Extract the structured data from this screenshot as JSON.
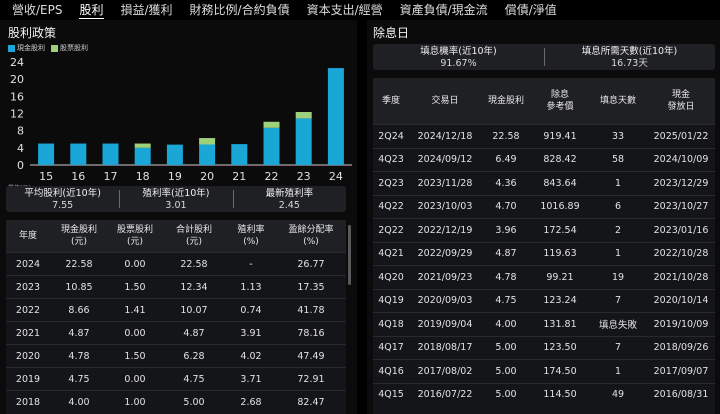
{
  "nav": {
    "tabs": [
      {
        "label": "營收/EPS",
        "active": false
      },
      {
        "label": "股利",
        "active": true
      },
      {
        "label": "損益/獲利",
        "active": false
      },
      {
        "label": "財務比例/合約負債",
        "active": false
      },
      {
        "label": "資本支出/經營",
        "active": false
      },
      {
        "label": "資產負債/現金流",
        "active": false
      },
      {
        "label": "償債/淨值",
        "active": false
      }
    ]
  },
  "left": {
    "title": "股利政策",
    "legend": {
      "cash": "現金股利",
      "stock": "股票股利"
    },
    "stats": [
      {
        "label": "平均股利(近10年)",
        "value": "7.55"
      },
      {
        "label": "殖利率(近10年)",
        "value": "3.01"
      },
      {
        "label": "最新殖利率",
        "value": "2.45"
      }
    ],
    "table": {
      "headers": [
        "年度",
        "現金股利\n(元)",
        "股票股利\n(元)",
        "合計股利\n(元)",
        "殖利率\n(%)",
        "盈餘分配率\n(%)"
      ],
      "rows": [
        [
          "2024",
          "22.58",
          "0.00",
          "22.58",
          "-",
          "26.77"
        ],
        [
          "2023",
          "10.85",
          "1.50",
          "12.34",
          "1.13",
          "17.35"
        ],
        [
          "2022",
          "8.66",
          "1.41",
          "10.07",
          "0.74",
          "41.78"
        ],
        [
          "2021",
          "4.87",
          "0.00",
          "4.87",
          "3.91",
          "78.16"
        ],
        [
          "2020",
          "4.78",
          "1.50",
          "6.28",
          "4.02",
          "47.49"
        ],
        [
          "2019",
          "4.75",
          "0.00",
          "4.75",
          "3.71",
          "72.91"
        ],
        [
          "2018",
          "4.00",
          "1.00",
          "5.00",
          "2.68",
          "82.47"
        ]
      ]
    }
  },
  "right": {
    "title": "除息日",
    "stats": [
      {
        "label": "填息機率(近10年)",
        "value": "91.67%"
      },
      {
        "label": "填息所需天數(近10年)",
        "value": "16.73天"
      }
    ],
    "table": {
      "headers": [
        "季度",
        "交易日",
        "現金股利",
        "除息\n參考價",
        "填息天數",
        "現金\n發放日"
      ],
      "rows": [
        [
          "2Q24",
          "2024/12/18",
          "22.58",
          "919.41",
          "33",
          "2025/01/22"
        ],
        [
          "4Q23",
          "2024/09/12",
          "6.49",
          "828.42",
          "58",
          "2024/10/09"
        ],
        [
          "2Q23",
          "2023/11/28",
          "4.36",
          "843.64",
          "1",
          "2023/12/29"
        ],
        [
          "4Q22",
          "2023/10/03",
          "4.70",
          "1016.89",
          "6",
          "2023/10/27"
        ],
        [
          "2Q22",
          "2022/12/19",
          "3.96",
          "172.54",
          "2",
          "2023/01/16"
        ],
        [
          "4Q21",
          "2022/09/29",
          "4.87",
          "119.63",
          "1",
          "2022/10/28"
        ],
        [
          "4Q20",
          "2021/09/23",
          "4.78",
          "99.21",
          "19",
          "2021/10/28"
        ],
        [
          "4Q19",
          "2020/09/03",
          "4.75",
          "123.24",
          "7",
          "2020/10/14"
        ],
        [
          "4Q18",
          "2019/09/04",
          "4.00",
          "131.81",
          "填息失敗",
          "2019/10/09"
        ],
        [
          "4Q17",
          "2018/08/17",
          "5.00",
          "123.50",
          "7",
          "2018/09/26"
        ],
        [
          "4Q16",
          "2017/08/02",
          "5.00",
          "174.50",
          "1",
          "2017/09/07"
        ],
        [
          "4Q15",
          "2016/07/22",
          "5.00",
          "114.50",
          "49",
          "2016/08/31"
        ]
      ]
    }
  },
  "chart_data": {
    "type": "bar",
    "stacked": true,
    "categories": [
      "15",
      "16",
      "17",
      "18",
      "19",
      "20",
      "21",
      "22",
      "23",
      "24"
    ],
    "series": [
      {
        "name": "現金股利",
        "color": "#1aa6d6",
        "values": [
          5.0,
          5.0,
          5.0,
          4.0,
          4.75,
          4.78,
          4.87,
          8.66,
          10.85,
          22.58
        ]
      },
      {
        "name": "股票股利",
        "color": "#9fd07a",
        "values": [
          0,
          0,
          0,
          1.0,
          0,
          1.5,
          0,
          1.41,
          1.5,
          0
        ]
      }
    ],
    "yticks": [
      "0",
      "4",
      "8",
      "12",
      "16",
      "20",
      "24"
    ],
    "ylim": [
      0,
      24
    ],
    "unit_label": "單位(元)",
    "grid": false
  }
}
